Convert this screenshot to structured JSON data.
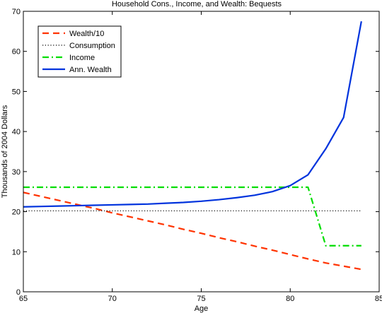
{
  "chart_data": {
    "type": "line",
    "title": "Household Cons., Income, and Wealth: Bequests",
    "xlabel": "Age",
    "ylabel": "Thousands of 2004 Dollars",
    "xlim": [
      65,
      85
    ],
    "ylim": [
      0,
      70
    ],
    "xticks": [
      65,
      70,
      75,
      80,
      85
    ],
    "yticks": [
      0,
      10,
      20,
      30,
      40,
      50,
      60,
      70
    ],
    "grid": false,
    "legend_position": "top-left",
    "series": [
      {
        "name": "Wealth/10",
        "color": "#ff3300",
        "style": "dashed",
        "x": [
          65,
          66,
          67,
          68,
          69,
          70,
          71,
          72,
          73,
          74,
          75,
          76,
          77,
          78,
          79,
          80,
          81,
          82,
          83,
          84
        ],
        "y": [
          24.8,
          23.8,
          22.8,
          21.8,
          20.8,
          19.7,
          18.7,
          17.7,
          16.7,
          15.6,
          14.6,
          13.5,
          12.5,
          11.4,
          10.4,
          9.3,
          8.2,
          7.2,
          6.4,
          5.6
        ]
      },
      {
        "name": "Consumption",
        "color": "#000000",
        "style": "dotted",
        "x": [
          65,
          70,
          75,
          80,
          84
        ],
        "y": [
          20.2,
          20.2,
          20.2,
          20.2,
          20.2
        ]
      },
      {
        "name": "Income",
        "color": "#00dd00",
        "style": "dashdot",
        "x": [
          65,
          66,
          67,
          68,
          69,
          70,
          71,
          72,
          73,
          74,
          75,
          76,
          77,
          78,
          79,
          80,
          81,
          82,
          83,
          84
        ],
        "y": [
          26.1,
          26.1,
          26.1,
          26.1,
          26.1,
          26.1,
          26.1,
          26.1,
          26.1,
          26.1,
          26.1,
          26.1,
          26.1,
          26.1,
          26.1,
          26.1,
          26.1,
          11.5,
          11.5,
          11.5
        ]
      },
      {
        "name": "Ann. Wealth",
        "color": "#0033dd",
        "style": "solid",
        "x": [
          65,
          66,
          67,
          68,
          69,
          70,
          71,
          72,
          73,
          74,
          75,
          76,
          77,
          78,
          79,
          80,
          81,
          82,
          83,
          84
        ],
        "y": [
          21.2,
          21.3,
          21.4,
          21.5,
          21.6,
          21.7,
          21.8,
          21.9,
          22.1,
          22.3,
          22.6,
          23.0,
          23.5,
          24.1,
          25.0,
          26.5,
          29.2,
          35.7,
          43.5,
          67.5
        ]
      }
    ]
  }
}
